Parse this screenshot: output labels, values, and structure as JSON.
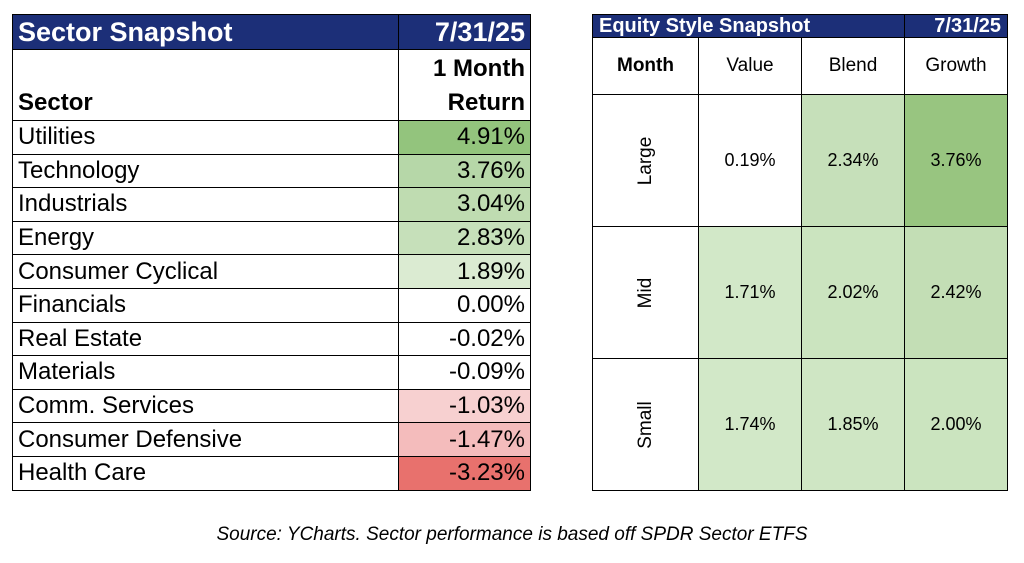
{
  "chart_data": [
    {
      "type": "table",
      "title": "Sector Snapshot",
      "date": "7/31/25",
      "column_headers": [
        "Sector",
        "1 Month",
        "Return"
      ],
      "rows": [
        {
          "sector": "Utilities",
          "value": "4.91%",
          "color": "#93c47d"
        },
        {
          "sector": "Technology",
          "value": "3.76%",
          "color": "#b6d7a8"
        },
        {
          "sector": "Industrials",
          "value": "3.04%",
          "color": "#bfdcb1"
        },
        {
          "sector": "Energy",
          "value": "2.83%",
          "color": "#c6e0ba"
        },
        {
          "sector": "Consumer Cyclical",
          "value": "1.89%",
          "color": "#dbebd2"
        },
        {
          "sector": "Financials",
          "value": "0.00%",
          "color": "#ffffff"
        },
        {
          "sector": "Real Estate",
          "value": "-0.02%",
          "color": "#ffffff"
        },
        {
          "sector": "Materials",
          "value": "-0.09%",
          "color": "#ffffff"
        },
        {
          "sector": "Comm. Services",
          "value": "-1.03%",
          "color": "#f7d0d0"
        },
        {
          "sector": "Consumer Defensive",
          "value": "-1.47%",
          "color": "#f4bcbc"
        },
        {
          "sector": "Health Care",
          "value": "-3.23%",
          "color": "#e8716d"
        }
      ]
    },
    {
      "type": "heatmap",
      "title": "Equity Style Snapshot",
      "date": "7/31/25",
      "corner_label": "Month",
      "columns": [
        "Value",
        "Blend",
        "Growth"
      ],
      "rows": [
        {
          "label": "Large",
          "values": [
            "0.19%",
            "2.34%",
            "3.76%"
          ],
          "colors": [
            "#ffffff",
            "#c6e0ba",
            "#98c580"
          ]
        },
        {
          "label": "Mid",
          "values": [
            "1.71%",
            "2.02%",
            "2.42%"
          ],
          "colors": [
            "#d2e8c8",
            "#cbe4bf",
            "#c3deb5"
          ]
        },
        {
          "label": "Small",
          "values": [
            "1.74%",
            "1.85%",
            "2.00%"
          ],
          "colors": [
            "#d2e8c8",
            "#cfe6c4",
            "#cbe4bf"
          ]
        }
      ]
    }
  ],
  "source_note": "Source: YCharts. Sector performance is based off SPDR Sector ETFS",
  "colors": {
    "header_bg": "#1c2f78",
    "header_text": "#ffffff"
  }
}
